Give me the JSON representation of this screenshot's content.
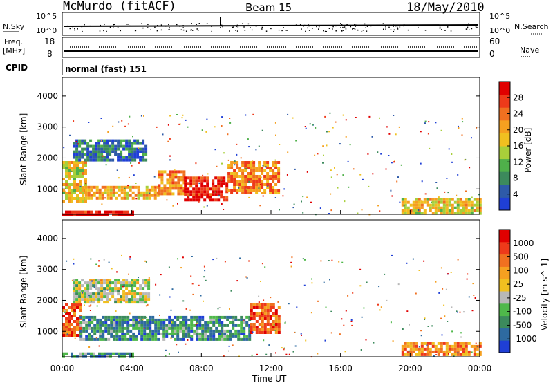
{
  "header": {
    "station": "McMurdo (fitACF)",
    "beam": "Beam 15",
    "date": "18/May/2010"
  },
  "top_panels": {
    "nsky_label": "N.Sky",
    "nsky_tick_hi": "10^5",
    "nsky_tick_lo": "10^0",
    "nsearch_label": "N.Search",
    "freq_label": "Freq.",
    "freq_unit": "[MHz]",
    "freq_ticks": [
      "18",
      "8"
    ],
    "nave_label": "Nave",
    "nave_ticks": [
      "60",
      "0"
    ],
    "cpid_label": "CPID",
    "cpid_value": "normal (fast) 151"
  },
  "colors": {
    "power_scale": [
      "#1f3fd6",
      "#2e5aa8",
      "#3c8a5c",
      "#4fb04a",
      "#a8cf3a",
      "#f0c020",
      "#f5a020",
      "#f07020",
      "#ee3a1a",
      "#e00000"
    ],
    "velocity_scale": [
      "#1f3fd6",
      "#2e6aa0",
      "#3c8a5c",
      "#4fb84a",
      "#b8b8b8",
      "#f0c020",
      "#f5a020",
      "#f07020",
      "#ee3a1a",
      "#e00000"
    ]
  },
  "chart_data": [
    {
      "type": "heatmap",
      "name": "power",
      "ylabel": "Slant Range [km]",
      "xlabel": "Time UT",
      "x_ticks": [
        "00:00",
        "04:00",
        "08:00",
        "12:00",
        "16:00",
        "20:00",
        "00:00"
      ],
      "y_ticks": [
        "1000",
        "2000",
        "3000",
        "4000"
      ],
      "ylim": [
        180,
        4600
      ],
      "xlim_hours": [
        0,
        24
      ],
      "colorbar": {
        "label": "Power [dB]",
        "ticks": [
          "28",
          "24",
          "20",
          "16",
          "12",
          "8",
          "4"
        ]
      },
      "regions": [
        {
          "t0": 0.0,
          "t1": 1.3,
          "r0": 600,
          "r1": 1900,
          "level": 0.55
        },
        {
          "t0": 1.3,
          "t1": 5.5,
          "r0": 700,
          "r1": 1100,
          "level": 0.62
        },
        {
          "t0": 5.5,
          "t1": 7.0,
          "r0": 800,
          "r1": 1600,
          "level": 0.7
        },
        {
          "t0": 7.0,
          "t1": 9.5,
          "r0": 650,
          "r1": 1400,
          "level": 0.93
        },
        {
          "t0": 9.5,
          "t1": 12.4,
          "r0": 900,
          "r1": 1900,
          "level": 0.72
        },
        {
          "t0": 0.6,
          "t1": 4.8,
          "r0": 1900,
          "r1": 2600,
          "level": 0.18
        },
        {
          "t0": 19.5,
          "t1": 24.0,
          "r0": 250,
          "r1": 700,
          "level": 0.55
        },
        {
          "t0": 0.0,
          "t1": 4.0,
          "r0": 200,
          "r1": 300,
          "level": 0.95
        }
      ]
    },
    {
      "type": "heatmap",
      "name": "velocity",
      "ylabel": "Slant Range [km]",
      "xlabel": "Time UT",
      "x_ticks": [
        "00:00",
        "04:00",
        "08:00",
        "12:00",
        "16:00",
        "20:00",
        "00:00"
      ],
      "y_ticks": [
        "1000",
        "2000",
        "3000",
        "4000"
      ],
      "ylim": [
        180,
        4600
      ],
      "xlim_hours": [
        0,
        24
      ],
      "colorbar": {
        "label": "Velocity [m s^-1]",
        "ticks": [
          "1000",
          "500",
          "100",
          "25",
          "-25",
          "-100",
          "-500",
          "-1000"
        ]
      },
      "regions": [
        {
          "t0": 0.0,
          "t1": 1.0,
          "r0": 900,
          "r1": 1900,
          "level": 0.8
        },
        {
          "t0": 1.0,
          "t1": 10.8,
          "r0": 700,
          "r1": 1500,
          "level": 0.25
        },
        {
          "t0": 0.6,
          "t1": 5.0,
          "r0": 1900,
          "r1": 2700,
          "level": 0.45
        },
        {
          "t0": 10.8,
          "t1": 12.5,
          "r0": 1000,
          "r1": 1900,
          "level": 0.78
        },
        {
          "t0": 19.5,
          "t1": 24.0,
          "r0": 250,
          "r1": 650,
          "level": 0.7
        },
        {
          "t0": 0.0,
          "t1": 4.0,
          "r0": 200,
          "r1": 320,
          "level": 0.25
        }
      ]
    }
  ]
}
